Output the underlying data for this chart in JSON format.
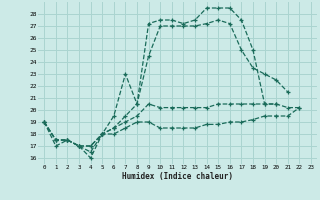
{
  "xlabel": "Humidex (Indice chaleur)",
  "bg_color": "#cceae7",
  "grid_color": "#aad4d0",
  "line_color": "#1a6b5a",
  "ylim": [
    15.5,
    29
  ],
  "xlim": [
    -0.5,
    23.5
  ],
  "yticks": [
    16,
    17,
    18,
    19,
    20,
    21,
    22,
    23,
    24,
    25,
    26,
    27,
    28
  ],
  "xticks": [
    0,
    1,
    2,
    3,
    4,
    5,
    6,
    7,
    8,
    9,
    10,
    11,
    12,
    13,
    14,
    15,
    16,
    17,
    18,
    19,
    20,
    21,
    22,
    23
  ],
  "series": [
    {
      "x": [
        0,
        1,
        2,
        3,
        4,
        5,
        6,
        7,
        8,
        9,
        10,
        11,
        12,
        13,
        14,
        15,
        16,
        17,
        18,
        19,
        20
      ],
      "y": [
        19,
        17,
        17.5,
        17,
        16,
        18,
        19.5,
        23,
        20.5,
        27.2,
        27.5,
        27.5,
        27.2,
        27.5,
        28.5,
        28.5,
        28.5,
        27.5,
        25,
        20.5,
        20.5
      ]
    },
    {
      "x": [
        0,
        1,
        2,
        3,
        4,
        5,
        6,
        7,
        8,
        9,
        10,
        11,
        12,
        13,
        14,
        15,
        16,
        17,
        18,
        19,
        20,
        21
      ],
      "y": [
        19,
        17.5,
        17.5,
        17,
        17,
        18,
        18.5,
        19.5,
        20.5,
        24.5,
        27,
        27,
        27,
        27,
        27.2,
        27.5,
        27.2,
        25,
        23.5,
        23,
        22.5,
        21.5
      ]
    },
    {
      "x": [
        0,
        1,
        2,
        3,
        4,
        5,
        6,
        7,
        8,
        9,
        10,
        11,
        12,
        13,
        14,
        15,
        16,
        17,
        18,
        19,
        20,
        21,
        22
      ],
      "y": [
        19,
        17.5,
        17.5,
        17,
        17,
        18,
        18.5,
        19,
        19.5,
        20.5,
        20.2,
        20.2,
        20.2,
        20.2,
        20.2,
        20.5,
        20.5,
        20.5,
        20.5,
        20.5,
        20.5,
        20.2,
        20.2
      ]
    },
    {
      "x": [
        0,
        1,
        2,
        3,
        4,
        5,
        6,
        7,
        8,
        9,
        10,
        11,
        12,
        13,
        14,
        15,
        16,
        17,
        18,
        19,
        20,
        21,
        22
      ],
      "y": [
        19,
        17.5,
        17.5,
        17,
        16.5,
        18,
        18,
        18.5,
        19,
        19,
        18.5,
        18.5,
        18.5,
        18.5,
        18.8,
        18.8,
        19,
        19,
        19.2,
        19.5,
        19.5,
        19.5,
        20.2
      ]
    }
  ]
}
